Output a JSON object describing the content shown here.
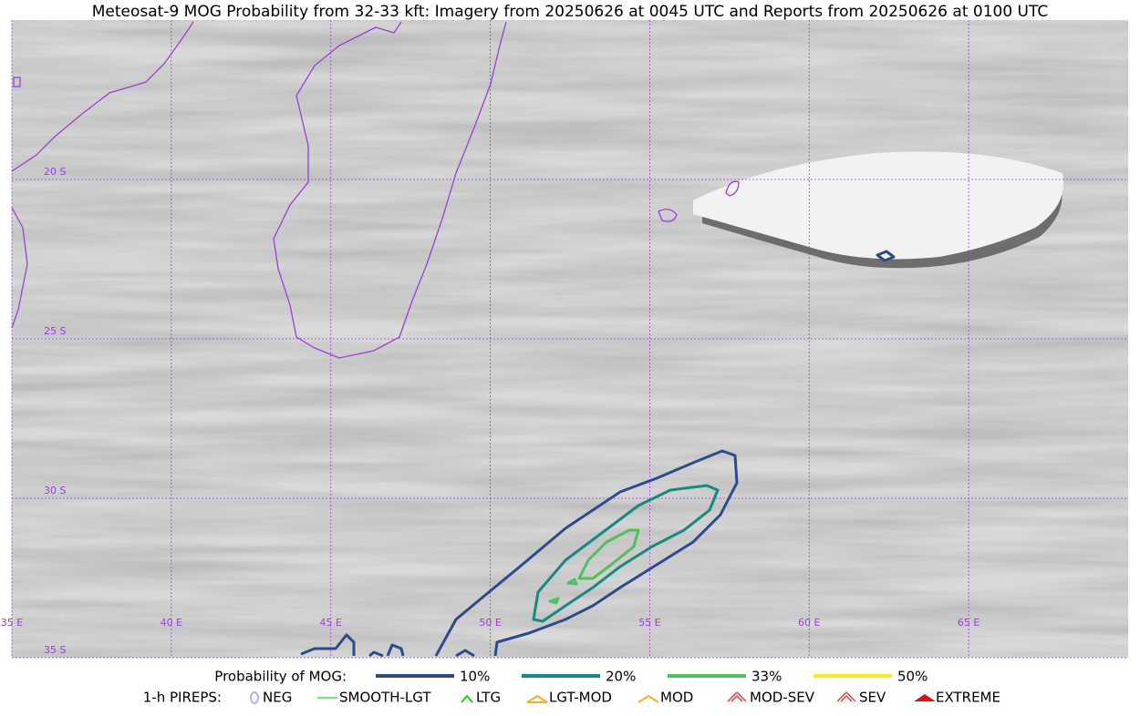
{
  "map": {
    "title": "Meteosat-9 MOG Probability from 32-33 kft: Imagery from 20250626 at 0045 UTC and Reports from 20250626 at 0100 UTC",
    "extent": {
      "lon": [
        35,
        70
      ],
      "lat": [
        -15,
        -35
      ]
    },
    "lon_lines": [
      {
        "value": 35,
        "label": "35 E"
      },
      {
        "value": 40,
        "label": "40 E"
      },
      {
        "value": 45,
        "label": "45 E"
      },
      {
        "value": 50,
        "label": "50 E"
      },
      {
        "value": 55,
        "label": "55 E"
      },
      {
        "value": 60,
        "label": "60 E"
      },
      {
        "value": 65,
        "label": "65 E"
      }
    ],
    "lat_lines": [
      {
        "value": -20,
        "label": "20 S"
      },
      {
        "value": -25,
        "label": "25 S"
      },
      {
        "value": -30,
        "label": "30 S"
      },
      {
        "value": -35,
        "label": "35 S"
      }
    ],
    "grid_color": "#9b3fd6",
    "probability_legend": {
      "title": "Probability of MOG:",
      "items": [
        {
          "label": "10%",
          "color": "#2e4a8c"
        },
        {
          "label": "20%",
          "color": "#168a80"
        },
        {
          "label": "33%",
          "color": "#4cc25a"
        },
        {
          "label": "50%",
          "color": "#fde725"
        }
      ]
    },
    "pirep_legend": {
      "title": "1-h PIREPS:",
      "items": [
        {
          "label": "NEG",
          "color": "#b0b0ff"
        },
        {
          "label": "SMOOTH-LGT",
          "color": "#44dd44"
        },
        {
          "label": "LTG",
          "color": "#22cc22"
        },
        {
          "label": "LGT-MOD",
          "color": "#f0b020"
        },
        {
          "label": "MOD",
          "color": "#f0b020"
        },
        {
          "label": "MOD-SEV",
          "color": "#e04040"
        },
        {
          "label": "SEV",
          "color": "#e04040"
        },
        {
          "label": "EXTREME",
          "color": "#e01010"
        }
      ]
    }
  }
}
